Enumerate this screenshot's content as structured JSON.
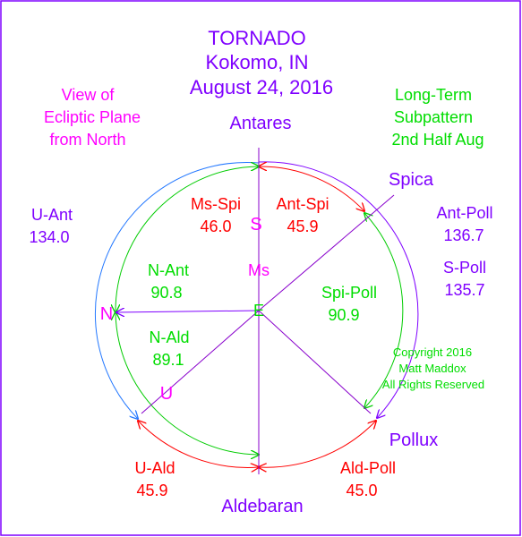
{
  "title": {
    "line1": "TORNADO",
    "line2": "Kokomo, IN",
    "line3": "August 24, 2016"
  },
  "view_note": {
    "line1": "View of",
    "line2": "Ecliptic Plane",
    "line3": "from North"
  },
  "subpattern": {
    "line1": "Long-Term",
    "line2": "Subpattern",
    "line3": "2nd Half Aug"
  },
  "copyright": {
    "line1": "Copyright 2016",
    "line2": "Matt Maddox",
    "line3": "All Rights Reserved"
  },
  "stars": {
    "antares": "Antares",
    "spica": "Spica",
    "pollux": "Pollux",
    "aldebaran": "Aldebaran"
  },
  "markers": {
    "s": "S",
    "ms": "Ms",
    "e": "E",
    "n": "N",
    "u": "U"
  },
  "angles": {
    "ms_spi": {
      "label": "Ms-Spi",
      "value": "46.0"
    },
    "ant_spi": {
      "label": "Ant-Spi",
      "value": "45.9"
    },
    "n_ant": {
      "label": "N-Ant",
      "value": "90.8"
    },
    "spi_poll": {
      "label": "Spi-Poll",
      "value": "90.9"
    },
    "n_ald": {
      "label": "N-Ald",
      "value": "89.1"
    },
    "u_ald": {
      "label": "U-Ald",
      "value": "45.9"
    },
    "ald_poll": {
      "label": "Ald-Poll",
      "value": "45.0"
    },
    "u_ant": {
      "label": "U-Ant",
      "value": "134.0"
    },
    "ant_poll": {
      "label": "Ant-Poll",
      "value": "136.7"
    },
    "s_poll": {
      "label": "S-Poll",
      "value": "135.7"
    }
  },
  "colors": {
    "purple": "#7f00ff",
    "magenta": "#ff00ff",
    "green": "#00dd00",
    "red": "#ff0000",
    "blue": "#2277ff",
    "violet_line": "#8800cc"
  }
}
